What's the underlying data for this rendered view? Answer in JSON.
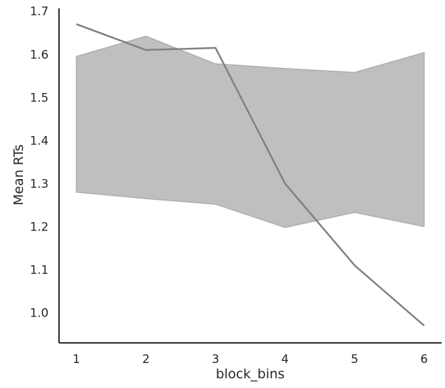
{
  "chart_data": {
    "type": "line",
    "title": "",
    "xlabel": "block_bins",
    "ylabel": "Mean RTs",
    "x": [
      1,
      2,
      3,
      4,
      5,
      6
    ],
    "xticks": [
      "1",
      "2",
      "3",
      "4",
      "5",
      "6"
    ],
    "xlim": [
      0.75,
      6.25
    ],
    "ylim": [
      0.93,
      1.71
    ],
    "yticks": [
      "1.0",
      "1.1",
      "1.2",
      "1.3",
      "1.4",
      "1.5",
      "1.6",
      "1.7"
    ],
    "series": [
      {
        "values": [
          1.67,
          1.61,
          1.615,
          1.3,
          1.11,
          0.97
        ],
        "color": "#808080"
      }
    ],
    "band": {
      "lower": [
        1.28,
        1.265,
        1.252,
        1.198,
        1.233,
        1.2
      ],
      "upper": [
        1.595,
        1.642,
        1.578,
        1.567,
        1.558,
        1.604
      ],
      "color": "#a9a9a9",
      "opacity": 0.75
    },
    "grid": false,
    "legend": "none"
  }
}
